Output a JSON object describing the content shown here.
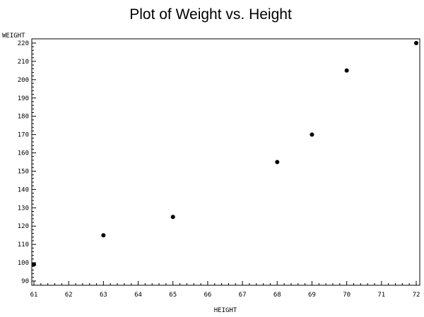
{
  "chart_data": {
    "type": "scatter",
    "title": "Plot of Weight vs. Height",
    "xlabel": "HEIGHT",
    "ylabel": "WEIGHT",
    "xlim": [
      61,
      72
    ],
    "ylim": [
      90,
      220
    ],
    "x_ticks": [
      "61",
      "62",
      "63",
      "64",
      "65",
      "66",
      "67",
      "68",
      "69",
      "70",
      "71",
      "72"
    ],
    "y_ticks": [
      "90",
      "100",
      "110",
      "120",
      "130",
      "140",
      "150",
      "160",
      "170",
      "180",
      "190",
      "200",
      "210",
      "220"
    ],
    "grid": false,
    "marker_color": "#000000",
    "series": [
      {
        "points": [
          {
            "x": 61,
            "y": 99
          },
          {
            "x": 63,
            "y": 115
          },
          {
            "x": 65,
            "y": 125
          },
          {
            "x": 68,
            "y": 155
          },
          {
            "x": 69,
            "y": 170
          },
          {
            "x": 70,
            "y": 205
          },
          {
            "x": 72,
            "y": 220
          }
        ]
      }
    ]
  }
}
